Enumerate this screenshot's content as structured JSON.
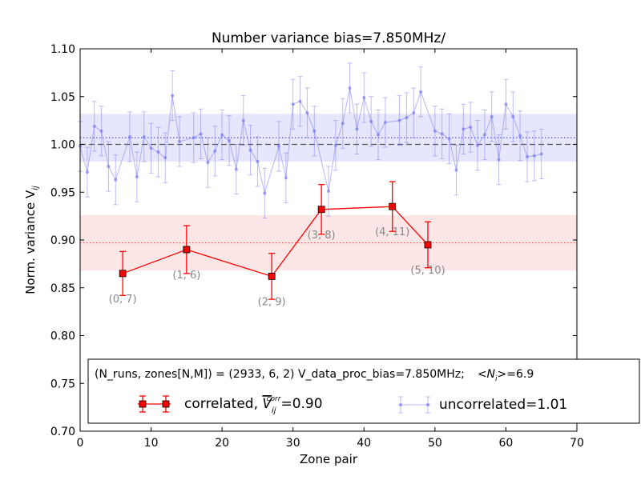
{
  "chart_data": {
    "type": "scatter",
    "title": "Number variance bias=7.850MHz/",
    "xlabel": "Zone pair",
    "ylabel": "Norm. variance V",
    "ylabel_sub": "ij",
    "xlim": [
      0,
      70
    ],
    "ylim": [
      0.7,
      1.1
    ],
    "xticks": [
      "0",
      "10",
      "20",
      "30",
      "40",
      "50",
      "60",
      "70"
    ],
    "yticks": [
      "0.70",
      "0.75",
      "0.80",
      "0.85",
      "0.90",
      "0.95",
      "1.00",
      "1.05",
      "1.10"
    ],
    "grid": false,
    "legend_position": "lower-center",
    "legend": {
      "header": "(N_runs, zones[N,M]) = (2933, 6, 2)  V_data_proc_bias=7.850MHz;",
      "header_mean_prefix": "<N",
      "header_mean_sub": "i",
      "header_mean_suffix": ">=6.9",
      "correlated_prefix": "correlated, ",
      "correlated_symbol": "V",
      "correlated_sub": "ij",
      "correlated_sup": "corr",
      "correlated_value": "=0.90",
      "uncorrelated_label": "uncorrelated=1.01"
    },
    "reference_lines": {
      "unity_dashed": 1.0,
      "uncorrelated_mean": 1.007,
      "correlated_mean": 0.897
    },
    "bands": {
      "uncorrelated": [
        0.982,
        1.032
      ],
      "correlated": [
        0.868,
        0.926
      ]
    },
    "series": [
      {
        "key": "correlated",
        "color": "#ff0000",
        "points": [
          {
            "x": 6,
            "y": 0.865,
            "err": 0.023,
            "label": "(0, 7)"
          },
          {
            "x": 15,
            "y": 0.89,
            "err": 0.025,
            "label": "(1, 6)"
          },
          {
            "x": 27,
            "y": 0.862,
            "err": 0.024,
            "label": "(2, 9)"
          },
          {
            "x": 34,
            "y": 0.932,
            "err": 0.026,
            "label": "(3, 8)"
          },
          {
            "x": 44,
            "y": 0.935,
            "err": 0.026,
            "label": "(4, 11)"
          },
          {
            "x": 49,
            "y": 0.895,
            "err": 0.024,
            "label": "(5, 10)"
          }
        ]
      },
      {
        "key": "uncorrelated",
        "color": "#6f6ff0",
        "err": 0.026,
        "x": [
          0,
          1,
          2,
          3,
          4,
          5,
          7,
          8,
          9,
          10,
          11,
          12,
          13,
          14,
          16,
          17,
          18,
          19,
          20,
          21,
          22,
          23,
          24,
          25,
          26,
          28,
          29,
          30,
          31,
          32,
          33,
          35,
          36,
          37,
          38,
          39,
          40,
          41,
          42,
          43,
          45,
          46,
          47,
          48,
          50,
          51,
          52,
          53,
          54,
          55,
          56,
          57,
          58,
          59,
          60,
          61,
          62,
          63,
          64,
          65
        ],
        "y": [
          0.998,
          0.971,
          1.019,
          1.014,
          0.977,
          0.963,
          1.008,
          0.966,
          1.008,
          0.996,
          0.992,
          0.986,
          1.051,
          1.003,
          1.007,
          1.011,
          0.981,
          0.993,
          1.01,
          1.004,
          0.974,
          1.025,
          0.994,
          0.982,
          0.949,
          0.998,
          0.965,
          1.042,
          1.045,
          1.033,
          1.014,
          0.951,
          0.999,
          1.022,
          1.059,
          1.016,
          1.049,
          1.024,
          1.01,
          1.023,
          1.025,
          1.028,
          1.033,
          1.055,
          1.014,
          1.011,
          1.006,
          0.973,
          1.016,
          1.018,
          0.999,
          1.01,
          1.029,
          0.984,
          1.042,
          1.029,
          1.009,
          0.987,
          0.988,
          0.99
        ]
      }
    ]
  }
}
